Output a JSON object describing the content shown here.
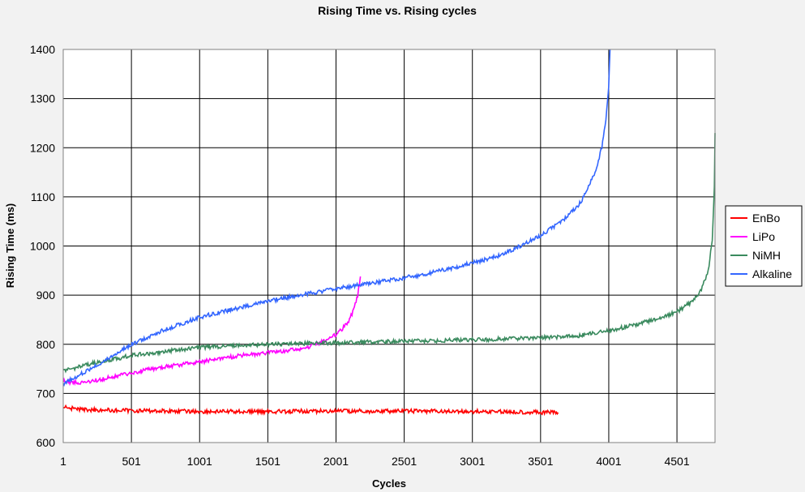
{
  "chart_data": {
    "type": "line",
    "title": "Rising Time vs. Rising cycles",
    "xlabel": "Cycles",
    "ylabel": "Rising Time (ms)",
    "xlim": [
      1,
      4780
    ],
    "ylim": [
      600,
      1400
    ],
    "x_ticks": [
      1,
      501,
      1001,
      1501,
      2001,
      2501,
      3001,
      3501,
      4001,
      4501
    ],
    "x_tick_labels": [
      "1",
      "501",
      "1001",
      "1501",
      "2001",
      "2501",
      "3001",
      "3501",
      "4001",
      "4501"
    ],
    "y_ticks": [
      600,
      700,
      800,
      900,
      1000,
      1100,
      1200,
      1300,
      1400
    ],
    "y_tick_labels": [
      "600",
      "700",
      "800",
      "900",
      "1000",
      "1100",
      "1200",
      "1300",
      "1400"
    ],
    "grid": true,
    "legend_position": "right",
    "plot_background": "#ffffff",
    "series": [
      {
        "name": "EnBo",
        "color": "#ff0000",
        "x": [
          1,
          50,
          150,
          300,
          500,
          800,
          1000,
          1200,
          1500,
          1800,
          2000,
          2300,
          2600,
          2900,
          3200,
          3400,
          3630
        ],
        "y": [
          674,
          670,
          667,
          666,
          665,
          664,
          663,
          663,
          663,
          664,
          664,
          664,
          664,
          663,
          663,
          662,
          661
        ]
      },
      {
        "name": "LiPo",
        "color": "#ff00ff",
        "x": [
          1,
          50,
          150,
          300,
          500,
          700,
          900,
          1100,
          1300,
          1500,
          1700,
          1800,
          1900,
          1950,
          2000,
          2050,
          2100,
          2130,
          2160,
          2180
        ],
        "y": [
          727,
          723,
          722,
          730,
          742,
          752,
          760,
          768,
          777,
          783,
          789,
          795,
          805,
          812,
          820,
          832,
          850,
          870,
          900,
          938
        ]
      },
      {
        "name": "NiMH",
        "color": "#3a8a5e",
        "x": [
          1,
          200,
          500,
          1000,
          1500,
          2000,
          2500,
          3000,
          3500,
          3800,
          4000,
          4200,
          4400,
          4500,
          4600,
          4680,
          4730,
          4760,
          4775,
          4780
        ],
        "y": [
          745,
          760,
          777,
          794,
          800,
          803,
          806,
          809,
          813,
          818,
          828,
          840,
          856,
          866,
          885,
          910,
          950,
          1010,
          1120,
          1230
        ]
      },
      {
        "name": "Alkaline",
        "color": "#3366ff",
        "x": [
          1,
          100,
          300,
          500,
          700,
          1000,
          1300,
          1600,
          2000,
          2300,
          2600,
          2900,
          3200,
          3500,
          3700,
          3800,
          3900,
          3950,
          3980,
          4000,
          4010
        ],
        "y": [
          720,
          735,
          765,
          800,
          825,
          855,
          875,
          893,
          913,
          926,
          940,
          958,
          980,
          1020,
          1060,
          1090,
          1150,
          1200,
          1260,
          1320,
          1400
        ]
      }
    ]
  }
}
